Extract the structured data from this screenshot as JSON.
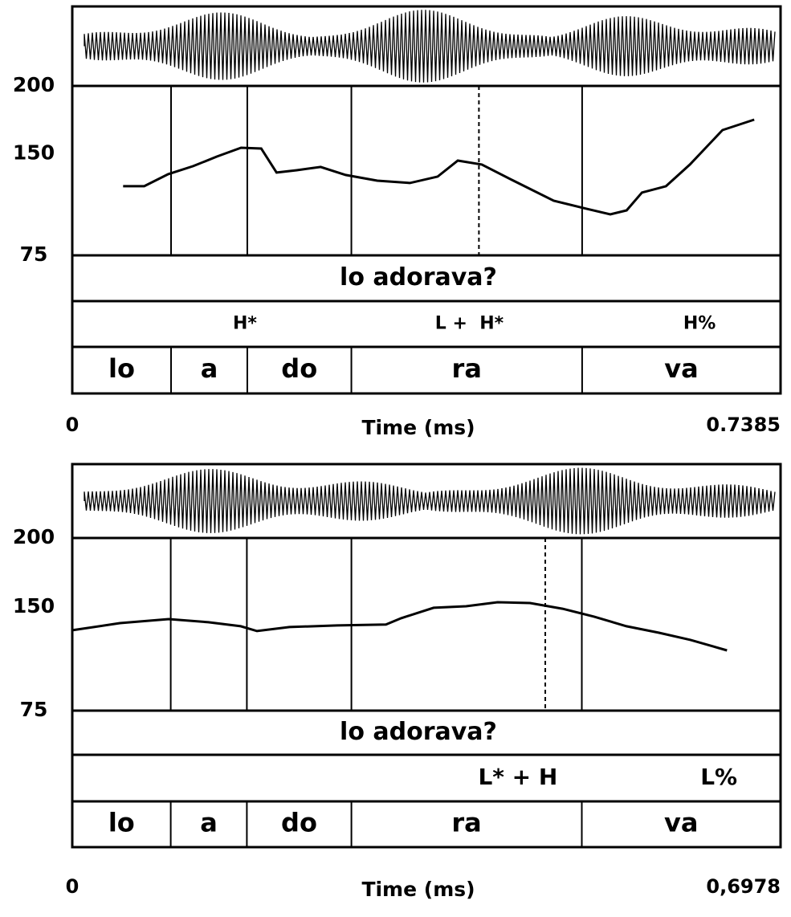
{
  "chart_data": [
    {
      "type": "line",
      "xlabel": "Time (ms)",
      "xlim": [
        0,
        0.7385
      ],
      "xticks": [
        0,
        0.7385
      ],
      "ylim": [
        75,
        200
      ],
      "yticks": [
        75,
        150,
        200
      ],
      "x": [
        0.053,
        0.075,
        0.1,
        0.126,
        0.151,
        0.176,
        0.197,
        0.213,
        0.234,
        0.259,
        0.285,
        0.318,
        0.352,
        0.381,
        0.402,
        0.427,
        0.46,
        0.502,
        0.536,
        0.561,
        0.578,
        0.594,
        0.619,
        0.644,
        0.678,
        0.711
      ],
      "series": [
        {
          "color": "#000000",
          "values": [
            126.0,
            126.0,
            134.9,
            140.8,
            147.9,
            154.4,
            153.8,
            136.1,
            137.8,
            140.2,
            134.3,
            130.1,
            128.4,
            133.1,
            144.9,
            142.0,
            130.1,
            115.3,
            109.4,
            105.3,
            108.2,
            121.3,
            126.0,
            142.0,
            167.4,
            175.1
          ]
        }
      ],
      "sentence": "lo adorava?",
      "tones": [
        {
          "label": "H*",
          "x": 0.18
        },
        {
          "label": "L +  H*",
          "x": 0.414
        },
        {
          "label": "H%",
          "x": 0.654
        }
      ],
      "syllables": [
        "lo",
        "a",
        "do",
        "ra",
        "va"
      ],
      "boundaries": [
        0.103,
        0.1825,
        0.291,
        0.5316
      ],
      "peak": 0.424
    },
    {
      "type": "line",
      "xlabel": "Time (ms)",
      "xlim": [
        0,
        0.6978
      ],
      "xticks": [
        0,
        {
          "value": 0.6978,
          "label": "0,6978"
        }
      ],
      "ylim": [
        75,
        200
      ],
      "yticks": [
        75,
        150,
        200
      ],
      "x": [
        0,
        0.047,
        0.095,
        0.134,
        0.166,
        0.182,
        0.214,
        0.261,
        0.309,
        0.324,
        0.356,
        0.388,
        0.419,
        0.451,
        0.483,
        0.514,
        0.546,
        0.578,
        0.609,
        0.645
      ],
      "series": [
        {
          "color": "#000000",
          "values": [
            133.2,
            138.4,
            141.3,
            139.0,
            136.1,
            132.6,
            135.5,
            136.7,
            137.3,
            141.9,
            149.5,
            150.6,
            153.5,
            152.9,
            148.8,
            143.1,
            136.1,
            131.4,
            126.2,
            118.6
          ]
        }
      ],
      "sentence": "lo adorava?",
      "tones": [
        {
          "label": "L* + H",
          "x": 0.439
        },
        {
          "label": "L%",
          "x": 0.637
        }
      ],
      "syllables": [
        "lo",
        "a",
        "do",
        "ra",
        "va"
      ],
      "boundaries": [
        0.097,
        0.172,
        0.275,
        0.502
      ],
      "peak": 0.466
    }
  ]
}
